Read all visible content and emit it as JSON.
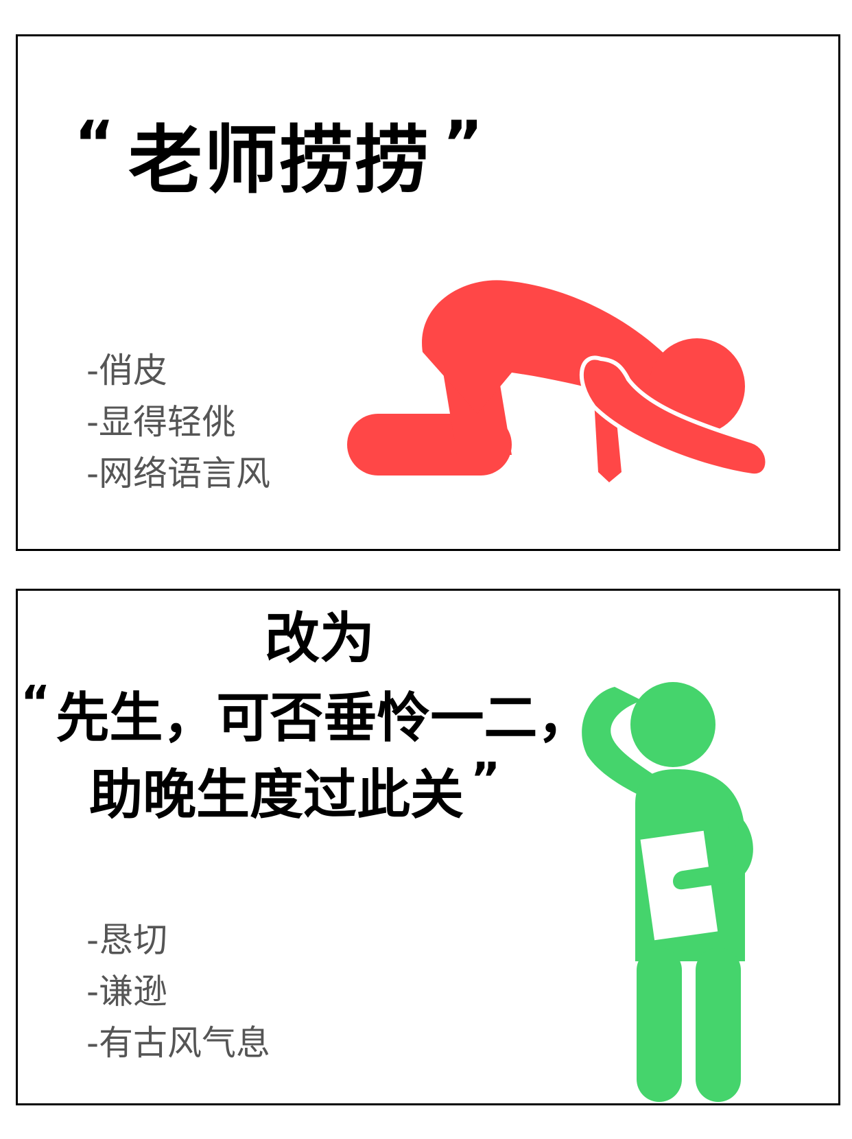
{
  "panels": {
    "top": {
      "open_quote": "“",
      "phrase": "老师捞捞",
      "close_quote": "”",
      "notes": [
        "-俏皮",
        "-显得轻佻",
        "-网络语言风"
      ],
      "figure_color": "#ff4747",
      "figure_icon": "bowing-person-icon"
    },
    "bottom": {
      "label": "改为",
      "open_quote": "“",
      "line1": "先生，可否垂怜一二，",
      "line2": "助晚生度过此关",
      "close_quote": "”",
      "notes": [
        "-恳切",
        "-谦逊",
        "-有古风气息"
      ],
      "figure_color": "#45d46c",
      "figure_icon": "thinking-person-icon"
    }
  }
}
